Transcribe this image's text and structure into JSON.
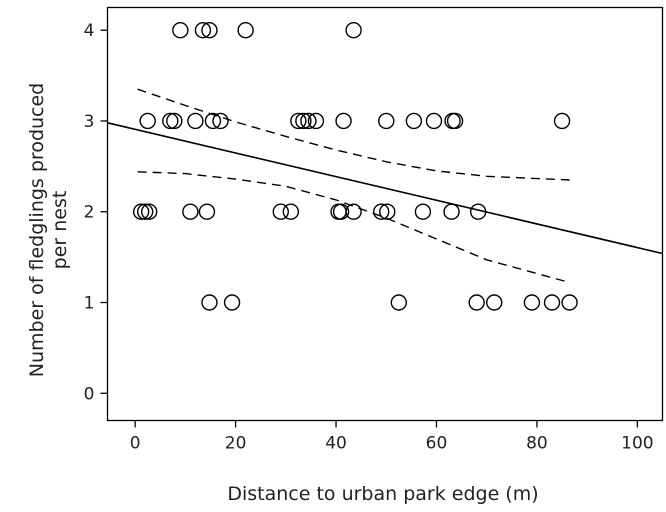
{
  "chart_data": {
    "type": "scatter",
    "xlabel": "Distance to urban park edge (m)",
    "ylabel_lines": [
      "Number of fledglings produced",
      "per nest"
    ],
    "xlim": [
      -5.5,
      105
    ],
    "ylim": [
      -0.3,
      4.25
    ],
    "xticks": [
      0,
      20,
      40,
      60,
      80,
      100
    ],
    "yticks": [
      0,
      1,
      2,
      3,
      4
    ],
    "grid": false,
    "points": [
      {
        "x": 9,
        "y": 4
      },
      {
        "x": 13.5,
        "y": 4
      },
      {
        "x": 14.8,
        "y": 4
      },
      {
        "x": 22,
        "y": 4
      },
      {
        "x": 43.5,
        "y": 4
      },
      {
        "x": 2.5,
        "y": 3
      },
      {
        "x": 7,
        "y": 3
      },
      {
        "x": 7.8,
        "y": 3
      },
      {
        "x": 12,
        "y": 3
      },
      {
        "x": 15.5,
        "y": 3
      },
      {
        "x": 17,
        "y": 3
      },
      {
        "x": 32.5,
        "y": 3
      },
      {
        "x": 33.5,
        "y": 3
      },
      {
        "x": 34.5,
        "y": 3
      },
      {
        "x": 36,
        "y": 3
      },
      {
        "x": 41.5,
        "y": 3
      },
      {
        "x": 50,
        "y": 3
      },
      {
        "x": 55.5,
        "y": 3
      },
      {
        "x": 59.5,
        "y": 3
      },
      {
        "x": 63.2,
        "y": 3
      },
      {
        "x": 63.7,
        "y": 3
      },
      {
        "x": 85,
        "y": 3
      },
      {
        "x": 1.2,
        "y": 2
      },
      {
        "x": 2,
        "y": 2
      },
      {
        "x": 2.8,
        "y": 2
      },
      {
        "x": 11,
        "y": 2
      },
      {
        "x": 14.3,
        "y": 2
      },
      {
        "x": 29,
        "y": 2
      },
      {
        "x": 31,
        "y": 2
      },
      {
        "x": 40.5,
        "y": 2
      },
      {
        "x": 41,
        "y": 2
      },
      {
        "x": 43.5,
        "y": 2
      },
      {
        "x": 49,
        "y": 2
      },
      {
        "x": 50.2,
        "y": 2
      },
      {
        "x": 57.3,
        "y": 2
      },
      {
        "x": 63,
        "y": 2
      },
      {
        "x": 68.3,
        "y": 2
      },
      {
        "x": 14.8,
        "y": 1
      },
      {
        "x": 19.3,
        "y": 1
      },
      {
        "x": 52.5,
        "y": 1
      },
      {
        "x": 68,
        "y": 1
      },
      {
        "x": 71.5,
        "y": 1
      },
      {
        "x": 79,
        "y": 1
      },
      {
        "x": 83,
        "y": 1
      },
      {
        "x": 86.5,
        "y": 1
      }
    ],
    "fit_line": [
      {
        "x": -5.5,
        "y": 2.98
      },
      {
        "x": 105,
        "y": 1.54
      }
    ],
    "ci_upper": [
      {
        "x": 0.5,
        "y": 3.35
      },
      {
        "x": 10,
        "y": 3.17
      },
      {
        "x": 20,
        "y": 2.99
      },
      {
        "x": 30,
        "y": 2.83
      },
      {
        "x": 40,
        "y": 2.68
      },
      {
        "x": 50,
        "y": 2.55
      },
      {
        "x": 60,
        "y": 2.45
      },
      {
        "x": 70,
        "y": 2.39
      },
      {
        "x": 86.5,
        "y": 2.35
      }
    ],
    "ci_lower": [
      {
        "x": 0.5,
        "y": 2.44
      },
      {
        "x": 10,
        "y": 2.42
      },
      {
        "x": 20,
        "y": 2.36
      },
      {
        "x": 30,
        "y": 2.28
      },
      {
        "x": 40,
        "y": 2.13
      },
      {
        "x": 50,
        "y": 1.93
      },
      {
        "x": 60,
        "y": 1.7
      },
      {
        "x": 70,
        "y": 1.47
      },
      {
        "x": 86.5,
        "y": 1.22
      }
    ]
  }
}
